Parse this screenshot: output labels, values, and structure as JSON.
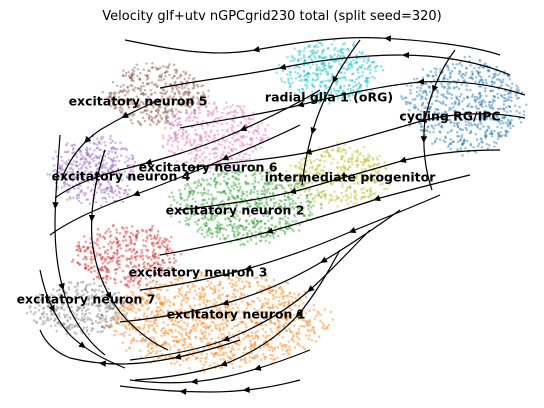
{
  "chart_data": {
    "type": "scatter",
    "subtype": "velocity-stream-embedding",
    "title": "Velocity glf+utv nGPCgrid230 total (split seed=320)",
    "xlabel": "",
    "ylabel": "",
    "axes_visible": false,
    "grid": false,
    "legend": "on-data",
    "clusters": [
      {
        "name": "radial glia 1 (oRG)",
        "color": "#17becf"
      },
      {
        "name": "cycling RG/IPC",
        "color": "#1f77b4"
      },
      {
        "name": "intermediate progenitor",
        "color": "#bcbd22"
      },
      {
        "name": "excitatory neuron 1",
        "color": "#ff7f0e"
      },
      {
        "name": "excitatory neuron 2",
        "color": "#2ca02c"
      },
      {
        "name": "excitatory neuron 3",
        "color": "#d62728"
      },
      {
        "name": "excitatory neuron 4",
        "color": "#9467bd"
      },
      {
        "name": "excitatory neuron 5",
        "color": "#8c564b"
      },
      {
        "name": "excitatory neuron 6",
        "color": "#e377c2"
      },
      {
        "name": "excitatory neuron 7",
        "color": "#7f7f7f"
      }
    ],
    "stream_color": "#000000"
  }
}
